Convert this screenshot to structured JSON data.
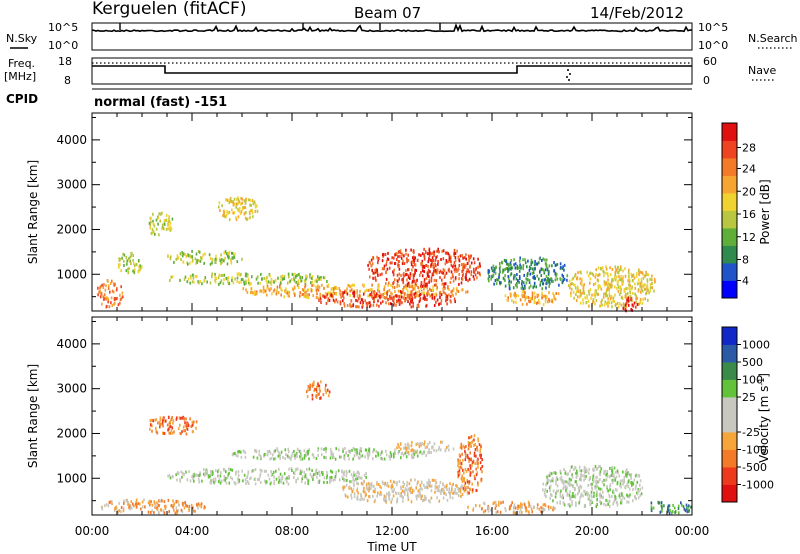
{
  "header": {
    "station": "Kerguelen (fitACF)",
    "beam": "Beam 07",
    "date": "14/Feb/2012"
  },
  "top_panels": {
    "nsky_label": "N.Sky",
    "nsearch_label": "N.Search",
    "freq_label_line1": "Freq.",
    "freq_label_line2": "[MHz]",
    "nave_label": "Nave",
    "cpid_label": "CPID",
    "cpid_value": "normal (fast) -151",
    "nsky_ticks": [
      "10^5",
      "10^0"
    ],
    "nsearch_ticks": [
      "10^5",
      "10^0"
    ],
    "freq_ticks": [
      "18",
      "8"
    ],
    "nave_ticks": [
      "60",
      "0"
    ]
  },
  "chart_data": [
    {
      "type": "heatmap",
      "panel": "power",
      "xlabel": "",
      "ylabel": "Slant Range [km]",
      "xlim": [
        0,
        24
      ],
      "ylim": [
        180,
        4600
      ],
      "yticks": [
        "4000",
        "3000",
        "2000",
        "1000"
      ],
      "colorbar": {
        "label": "Power [dB]",
        "ticks": [
          "28",
          "24",
          "20",
          "16",
          "12",
          "8",
          "4"
        ],
        "colors": [
          "#0000ff",
          "#1f55c8",
          "#2f8a4e",
          "#5fae3a",
          "#b8c640",
          "#f0d330",
          "#f7a531",
          "#f27a28",
          "#ee4422",
          "#e01010"
        ]
      },
      "features": [
        {
          "t0": 0.2,
          "t1": 1.2,
          "r0": 300,
          "r1": 900,
          "level": 7
        },
        {
          "t0": 1.0,
          "t1": 2.0,
          "r0": 1050,
          "r1": 1500,
          "level": 4
        },
        {
          "t0": 2.2,
          "t1": 3.2,
          "r0": 1900,
          "r1": 2400,
          "level": 4
        },
        {
          "t0": 3.0,
          "t1": 6.0,
          "r0": 1250,
          "r1": 1550,
          "level": 4
        },
        {
          "t0": 3.0,
          "t1": 9.5,
          "r0": 800,
          "r1": 1050,
          "level": 4
        },
        {
          "t0": 5.0,
          "t1": 6.6,
          "r0": 2250,
          "r1": 2750,
          "level": 5
        },
        {
          "t0": 6.0,
          "t1": 15.0,
          "r0": 500,
          "r1": 800,
          "level": 6
        },
        {
          "t0": 9.0,
          "t1": 14.5,
          "r0": 300,
          "r1": 650,
          "level": 8
        },
        {
          "t0": 11.0,
          "t1": 15.5,
          "r0": 750,
          "r1": 1600,
          "level": 8
        },
        {
          "t0": 15.8,
          "t1": 19.0,
          "r0": 700,
          "r1": 1400,
          "level": 2
        },
        {
          "t0": 16.5,
          "t1": 18.8,
          "r0": 350,
          "r1": 650,
          "level": 6
        },
        {
          "t0": 19.0,
          "t1": 22.5,
          "r0": 300,
          "r1": 1200,
          "level": 5
        },
        {
          "t0": 21.2,
          "t1": 21.8,
          "r0": 200,
          "r1": 500,
          "level": 9
        }
      ]
    },
    {
      "type": "heatmap",
      "panel": "velocity",
      "xlabel": "Time UT",
      "ylabel": "Slant Range [km]",
      "xlim": [
        0,
        24
      ],
      "ylim": [
        180,
        4600
      ],
      "yticks": [
        "4000",
        "3000",
        "2000",
        "1000"
      ],
      "xticks": [
        "00:00",
        "04:00",
        "08:00",
        "12:00",
        "16:00",
        "20:00",
        "00:00"
      ],
      "colorbar": {
        "label": "Velocity [m s^-1]",
        "ticks": [
          "1000",
          "500",
          "100",
          "25",
          "-25",
          "-100",
          "-500",
          "-1000"
        ],
        "colors": [
          "#e01010",
          "#ee3a1c",
          "#f27a28",
          "#f6a53a",
          "#c8c8c0",
          "#c8c8c0",
          "#62c23a",
          "#3a8a4a",
          "#2a5aa6",
          "#1028c8"
        ]
      },
      "features": [
        {
          "t0": 0.3,
          "t1": 4.5,
          "r0": 250,
          "r1": 550,
          "level": 3
        },
        {
          "t0": 2.2,
          "t1": 4.2,
          "r0": 2000,
          "r1": 2400,
          "level": 2
        },
        {
          "t0": 3.0,
          "t1": 11.0,
          "r0": 900,
          "r1": 1250,
          "level": 5
        },
        {
          "t0": 5.5,
          "t1": 13.5,
          "r0": 1450,
          "r1": 1700,
          "level": 5
        },
        {
          "t0": 8.5,
          "t1": 9.5,
          "r0": 2800,
          "r1": 3200,
          "level": 2
        },
        {
          "t0": 10.0,
          "t1": 15.0,
          "r0": 500,
          "r1": 1000,
          "level": 4
        },
        {
          "t0": 12.0,
          "t1": 14.5,
          "r0": 1600,
          "r1": 1850,
          "level": 4
        },
        {
          "t0": 14.6,
          "t1": 15.6,
          "r0": 700,
          "r1": 2000,
          "level": 2
        },
        {
          "t0": 15.0,
          "t1": 18.5,
          "r0": 250,
          "r1": 500,
          "level": 3
        },
        {
          "t0": 18.0,
          "t1": 22.0,
          "r0": 400,
          "r1": 1300,
          "level": 5
        },
        {
          "t0": 22.0,
          "t1": 24.0,
          "r0": 250,
          "r1": 500,
          "level": 7
        }
      ]
    }
  ]
}
